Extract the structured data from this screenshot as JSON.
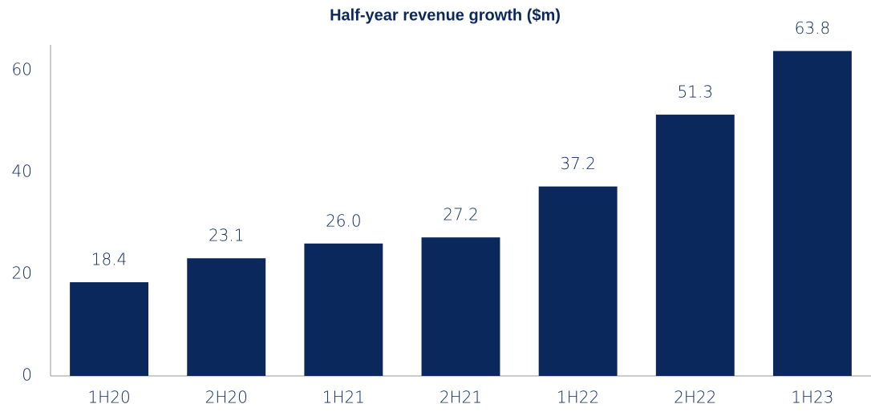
{
  "chart_data": {
    "type": "bar",
    "title": "Half-year revenue growth ($m)",
    "categories": [
      "1H20",
      "2H20",
      "1H21",
      "2H21",
      "1H22",
      "2H22",
      "1H23"
    ],
    "values": [
      18.4,
      23.1,
      26.0,
      27.2,
      37.2,
      51.3,
      63.8
    ],
    "value_labels": [
      "18.4",
      "23.1",
      "26.0",
      "27.2",
      "37.2",
      "51.3",
      "63.8"
    ],
    "color": "#0a285c",
    "ylim": [
      0,
      65
    ],
    "yticks": [
      0,
      20,
      40,
      60
    ],
    "grid": false
  }
}
